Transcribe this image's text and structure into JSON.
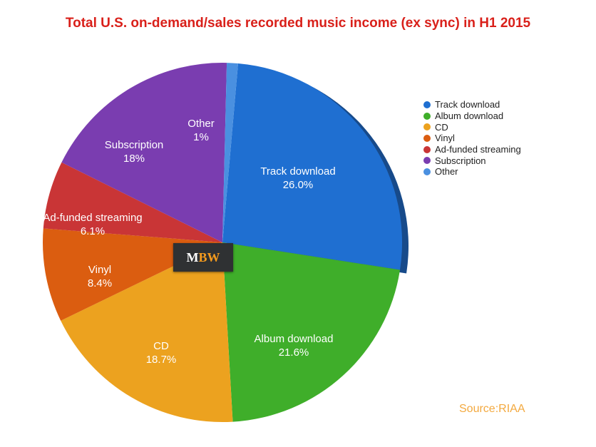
{
  "chart_data": {
    "type": "pie",
    "title": "Total U.S. on-demand/sales recorded music income (ex sync) in H1 2015",
    "slices": [
      {
        "name": "Track download",
        "value": 26.0,
        "label": "26.0%",
        "color": "#1f6fd1"
      },
      {
        "name": "Album download",
        "value": 21.6,
        "label": "21.6%",
        "color": "#3fae2a"
      },
      {
        "name": "CD",
        "value": 18.7,
        "label": "18.7%",
        "color": "#eca21f"
      },
      {
        "name": "Vinyl",
        "value": 8.4,
        "label": "8.4%",
        "color": "#db5d10"
      },
      {
        "name": "Ad-funded streaming",
        "value": 6.1,
        "label": "6.1%",
        "color": "#c93536"
      },
      {
        "name": "Subscription",
        "value": 18,
        "label": "18%",
        "color": "#7a3db0"
      },
      {
        "name": "Other",
        "value": 1,
        "label": "1%",
        "color": "#4a90e0"
      }
    ],
    "legend": {
      "position": "right"
    }
  },
  "source": "Source:RIAA",
  "logo": {
    "m": "M",
    "bw": "BW"
  }
}
